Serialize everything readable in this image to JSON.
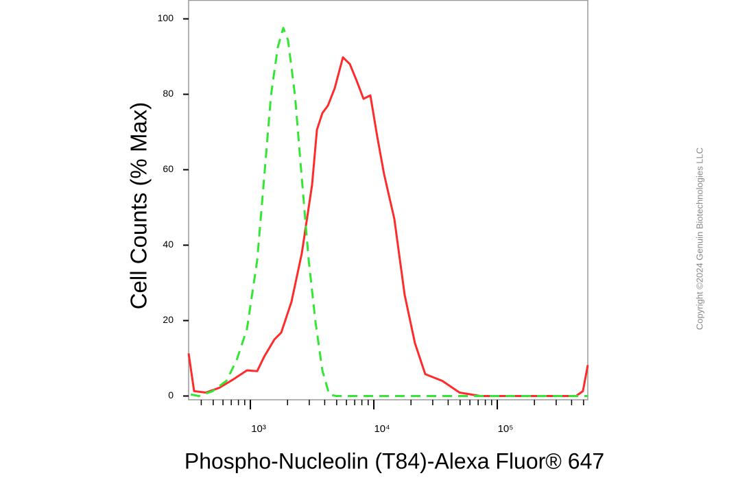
{
  "chart_data": {
    "type": "line",
    "xlabel": "Phospho-Nucleolin (T84)-Alexa Fluor® 647",
    "ylabel": "Cell Counts (% Max)",
    "annotation": "Copyright ©2024 Genuin Biotechnologies LLC",
    "xscale": "log",
    "xlim": [
      316,
      541000
    ],
    "ylim": [
      -1,
      105
    ],
    "xticks": [
      {
        "value": 1000,
        "label": "10³"
      },
      {
        "value": 10000,
        "label": "10⁴"
      },
      {
        "value": 100000,
        "label": "10⁵"
      }
    ],
    "xminorticks": [
      400,
      500,
      600,
      700,
      800,
      900,
      2000,
      3000,
      4000,
      5000,
      6000,
      7000,
      8000,
      9000,
      20000,
      30000,
      40000,
      50000,
      60000,
      70000,
      80000,
      90000,
      200000,
      300000,
      400000,
      500000
    ],
    "yticks": [
      0,
      20,
      40,
      60,
      80,
      100
    ],
    "series": [
      {
        "color": "#ff2a2a",
        "dash": false,
        "x": [
          316,
          350,
          435,
          562,
          727,
          938,
          1136,
          1292,
          1565,
          1778,
          2154,
          2610,
          3162,
          3459,
          3831,
          4245,
          4823,
          5623,
          6394,
          7263,
          8254,
          9380,
          10660,
          12115,
          14678,
          17783,
          21544,
          26102,
          35938,
          49468,
          72615,
          156494,
          435000,
          494000,
          541000
        ],
        "values": [
          11.3,
          1.3,
          0.9,
          2.2,
          4.4,
          6.8,
          6.6,
          10.4,
          15,
          16.8,
          25,
          37.8,
          56,
          70.6,
          75,
          77,
          81.6,
          89.8,
          88,
          83.6,
          78.8,
          79.7,
          68.8,
          58.8,
          46.9,
          26.8,
          14,
          5.8,
          4,
          0.9,
          0,
          0,
          0,
          1.3,
          8.2
        ]
      },
      {
        "color": "#33e633",
        "dash": true,
        "x": [
          329,
          383,
          495,
          639,
          774,
          938,
          1136,
          1292,
          1468,
          1668,
          1848,
          2020,
          2297,
          2610,
          2967,
          3372,
          3831,
          4353,
          4946,
          12115,
          72615,
          541000
        ],
        "values": [
          0.4,
          0,
          1.3,
          4,
          9.5,
          17.7,
          36,
          57.8,
          79.7,
          92.5,
          97.6,
          94.3,
          79.7,
          57.8,
          36,
          19.5,
          6.8,
          0.4,
          0,
          0,
          0,
          0
        ]
      }
    ]
  }
}
